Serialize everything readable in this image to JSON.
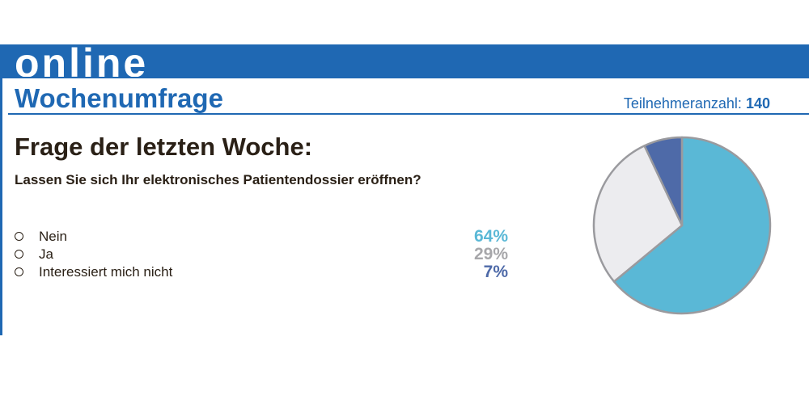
{
  "header": {
    "brand": "online",
    "title": "Wochenumfrage",
    "participants_label": "Teilnehmeranzahl:",
    "participants_count": "140"
  },
  "poll": {
    "heading": "Frage der letzten Woche:",
    "question": "Lassen Sie sich Ihr elektronisches Patientendossier eröffnen?",
    "answers": [
      {
        "label": "Nein",
        "percent_text": "64%",
        "color": "#5ab8d6"
      },
      {
        "label": "Ja",
        "percent_text": "29%",
        "color": "#a7a7aa"
      },
      {
        "label": "Interessiert mich nicht",
        "percent_text": "7%",
        "color": "#4e6aa8"
      }
    ]
  },
  "colors": {
    "brand_blue": "#1f68b3",
    "text": "#2a2016",
    "pie_outline": "#9a9a9e"
  },
  "chart_data": {
    "type": "pie",
    "categories": [
      "Nein",
      "Ja",
      "Interessiert mich nicht"
    ],
    "values": [
      64,
      29,
      7
    ],
    "slice_colors": [
      "#5ab8d6",
      "#ececef",
      "#4e6aa8"
    ],
    "start": "12 o'clock, clockwise"
  }
}
